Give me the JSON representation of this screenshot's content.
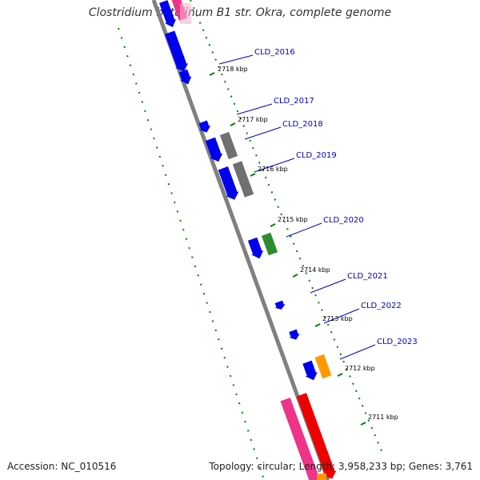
{
  "title": "Clostridium botulinum B1 str. Okra, complete genome",
  "footer": {
    "accession": "Accession: NC_010516",
    "topology": "Topology: circular; Length: 3,958,233 bp; Genes: 3,761"
  },
  "colors": {
    "backbone": "#808080",
    "gene_cds": "#0000ee",
    "gene_gray": "#707070",
    "gene_green": "#2e8b2e",
    "gene_orange": "#ff9900",
    "gene_pink": "#ee3388",
    "gene_red": "#ee0000",
    "label": "#0000cc",
    "ruler": "#008000"
  },
  "genes": [
    {
      "label": "CLD_2016",
      "color_key": "gene_cds"
    },
    {
      "label": "CLD_2017",
      "color_key": "gene_cds"
    },
    {
      "label": "CLD_2018",
      "color_key": "gene_gray"
    },
    {
      "label": "CLD_2019",
      "color_key": "gene_gray"
    },
    {
      "label": "CLD_2020",
      "color_key": "gene_green"
    },
    {
      "label": "CLD_2021",
      "color_key": "gene_cds"
    },
    {
      "label": "CLD_2022",
      "color_key": "gene_cds"
    },
    {
      "label": "CLD_2023",
      "color_key": "gene_orange"
    }
  ],
  "ticks": [
    "2718 kbp",
    "2717 kbp",
    "2716 kbp",
    "2715 kbp",
    "2714 kbp",
    "2713 kbp",
    "2712 kbp",
    "2711 kbp"
  ]
}
